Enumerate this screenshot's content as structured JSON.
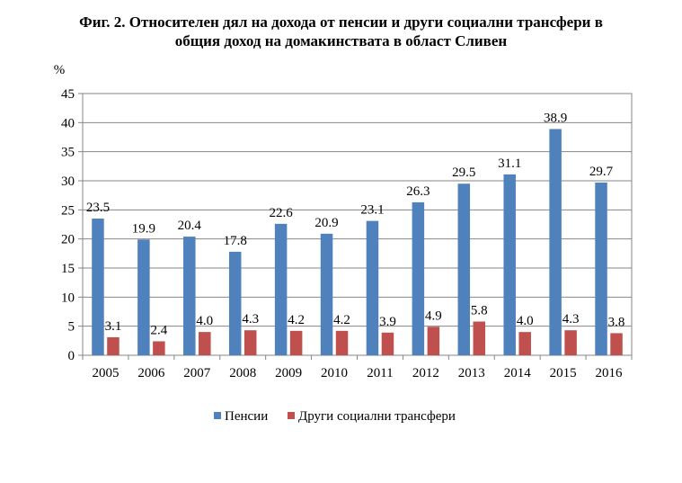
{
  "title": {
    "line1": "Фиг. 2. Относителен дял на дохода от пенсии и други социални трансфери в",
    "line2": "общия доход на домакинствата в област Сливен"
  },
  "chart_data": {
    "type": "bar",
    "ylabel": "%",
    "ylim": [
      0,
      45
    ],
    "yticks": [
      0,
      5,
      10,
      15,
      20,
      25,
      30,
      35,
      40,
      45
    ],
    "grid": true,
    "legend_position": "bottom",
    "categories": [
      "2005",
      "2006",
      "2007",
      "2008",
      "2009",
      "2010",
      "2011",
      "2012",
      "2013",
      "2014",
      "2015",
      "2016"
    ],
    "series": [
      {
        "name": "Пенсии",
        "color": "#4F81BD",
        "values": [
          23.5,
          19.9,
          20.4,
          17.8,
          22.6,
          20.9,
          23.1,
          26.3,
          29.5,
          31.1,
          38.9,
          29.7
        ]
      },
      {
        "name": "Други социални трансфери",
        "color": "#C0504D",
        "values": [
          3.1,
          2.4,
          4.0,
          4.3,
          4.2,
          4.2,
          3.9,
          4.9,
          5.8,
          4.0,
          4.3,
          3.8
        ]
      }
    ]
  }
}
